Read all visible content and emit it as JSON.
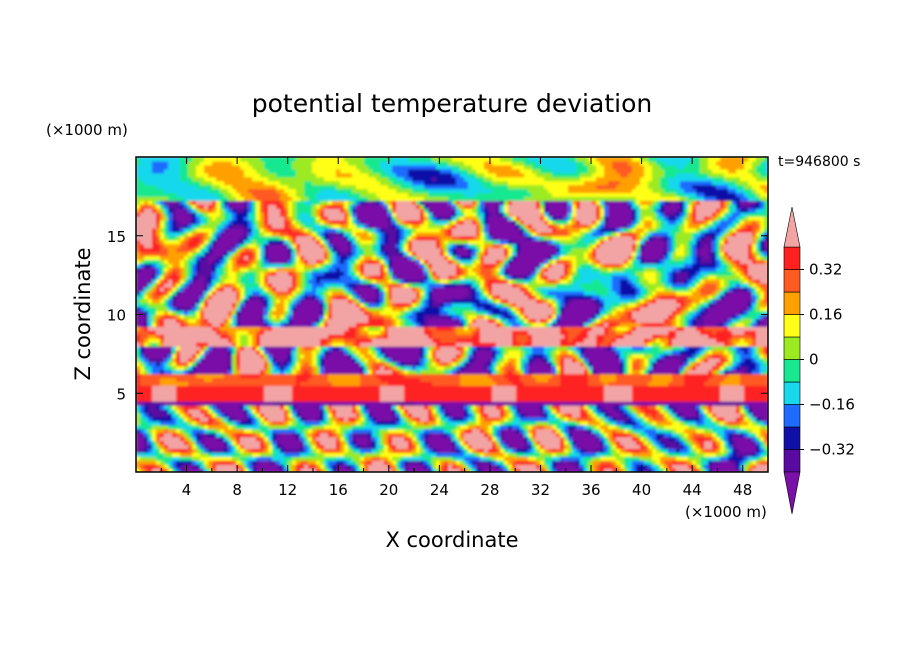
{
  "chart_data": {
    "type": "heatmap",
    "title": "potential temperature deviation",
    "xlabel": "X coordinate",
    "ylabel": "Z coordinate",
    "x_multiplier": "(×1000 m)",
    "y_multiplier": "(×1000 m)",
    "time_label": "t=946800 s",
    "xlim": [
      0,
      50
    ],
    "ylim": [
      0,
      20
    ],
    "x_ticks": [
      4,
      8,
      12,
      16,
      20,
      24,
      28,
      32,
      36,
      40,
      44,
      48
    ],
    "x_tick_labels": [
      "4",
      "8",
      "12",
      "16",
      "20",
      "24",
      "28",
      "32",
      "36",
      "40",
      "44",
      "48"
    ],
    "y_ticks": [
      5,
      10,
      15
    ],
    "y_tick_labels": [
      "5",
      "10",
      "15"
    ],
    "colorbar": {
      "levels": [
        -0.4,
        -0.32,
        -0.24,
        -0.16,
        -0.08,
        0,
        0.08,
        0.16,
        0.24,
        0.32,
        0.4
      ],
      "tick_values": [
        -0.32,
        -0.16,
        0,
        0.16,
        0.32
      ],
      "tick_labels": [
        "−0.32",
        "−0.16",
        "0",
        "0.16",
        "0.32"
      ],
      "extend": "both",
      "colors": [
        "#7a10a8",
        "#5a0aa0",
        "#1010a8",
        "#1e6cff",
        "#18d8ec",
        "#18e890",
        "#9cea20",
        "#ffff18",
        "#ffa000",
        "#ff5a20",
        "#ff2020",
        "#f2a4a4"
      ]
    }
  }
}
